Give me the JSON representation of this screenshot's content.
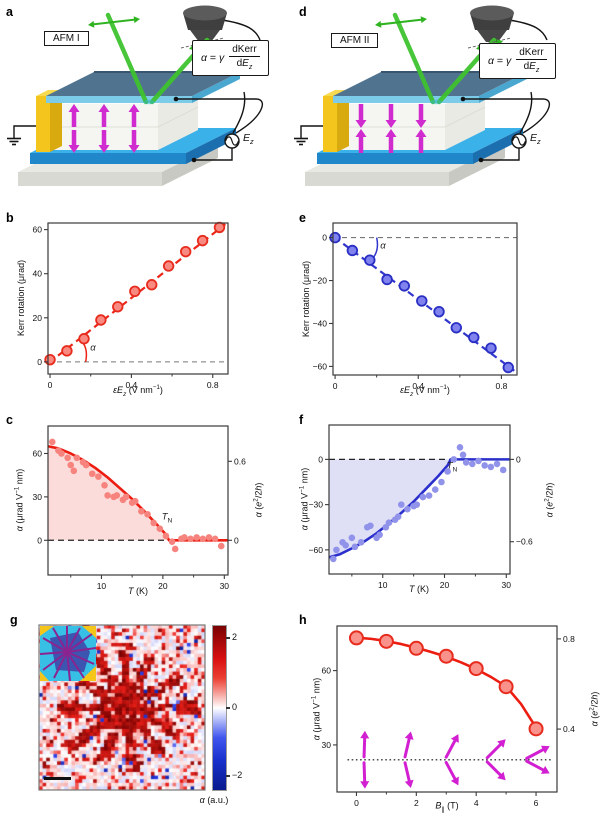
{
  "figure": {
    "letters": [
      "a",
      "b",
      "c",
      "d",
      "e",
      "f",
      "g",
      "h"
    ]
  },
  "panel_a": {
    "device_label": "AFM I",
    "equation": {
      "alpha": "α",
      "eq": " = ",
      "gamma": "γ",
      "num_d": "d",
      "num_name": "Kerr",
      "den_d": "d",
      "den_var": "E",
      "den_sub": "z"
    },
    "source": {
      "var": "E",
      "sub": "z"
    },
    "spins": {
      "top": "up",
      "bottom": "down"
    }
  },
  "panel_d": {
    "device_label": "AFM II",
    "equation": {
      "alpha": "α",
      "eq": " = ",
      "gamma": "γ",
      "num_d": "d",
      "num_name": "Kerr",
      "den_d": "d",
      "den_var": "E",
      "den_sub": "z"
    },
    "source": {
      "var": "E",
      "sub": "z"
    },
    "spins": {
      "top": "down",
      "bottom": "up"
    }
  },
  "chart_data": {
    "b": {
      "type": "scatter",
      "x": [
        0,
        0.083,
        0.167,
        0.25,
        0.333,
        0.417,
        0.5,
        0.583,
        0.667,
        0.75,
        0.833
      ],
      "y": [
        1,
        5,
        10.5,
        19,
        25,
        32,
        35,
        43.5,
        50,
        55,
        61
      ],
      "fit": {
        "type": "linear-dashed",
        "x": [
          -0.005,
          0.862
        ],
        "y": [
          -0.4,
          62.5
        ]
      },
      "arc": {
        "from": [
          0.175,
          0
        ],
        "ctrl": [
          0.19,
          6.5
        ],
        "to": [
          0.148,
          10.3
        ]
      },
      "xlim": [
        -0.01,
        0.875
      ],
      "ylim": [
        -5.5,
        63
      ],
      "xticks": {
        "values": [
          0,
          0.4,
          0.8
        ],
        "labels": [
          "0",
          "0.4",
          "0.8"
        ],
        "minor": [
          0.2,
          0.6
        ]
      },
      "yticks": {
        "values": [
          0,
          20,
          40,
          60
        ],
        "labels": [
          "0",
          "20",
          "40",
          "60"
        ]
      },
      "xlabel": [
        {
          "t": "ε",
          "i": true
        },
        {
          "t": "E",
          "i": true
        },
        {
          "t": "z",
          "i": true,
          "sub": true
        },
        {
          "t": " (V nm"
        },
        {
          "t": "−1",
          "sup": true
        },
        {
          "t": ")"
        }
      ],
      "ylabel": [
        {
          "t": "Kerr rotation (μrad)"
        }
      ],
      "annotation": [
        {
          "t": "α",
          "i": true
        }
      ],
      "zero_line": 0,
      "colors": {
        "line": "#ec2518",
        "marker_fill": "#f98a82",
        "marker_edge": "#e72c1e"
      }
    },
    "e": {
      "type": "scatter",
      "x": [
        0,
        0.083,
        0.167,
        0.25,
        0.333,
        0.417,
        0.5,
        0.583,
        0.667,
        0.75,
        0.833
      ],
      "y": [
        0,
        -6,
        -10.5,
        -19.5,
        -22.5,
        -29.5,
        -34.5,
        -42,
        -46.5,
        -51.5,
        -60.5
      ],
      "fit": {
        "type": "linear-dashed",
        "x": [
          -0.005,
          0.862
        ],
        "y": [
          0.3,
          -62
        ]
      },
      "arc": {
        "from": [
          0.2,
          0
        ],
        "ctrl": [
          0.215,
          -6.5
        ],
        "to": [
          0.172,
          -10.8
        ]
      },
      "xlim": [
        -0.01,
        0.875
      ],
      "ylim": [
        -64,
        6.8
      ],
      "xticks": {
        "values": [
          0,
          0.4,
          0.8
        ],
        "labels": [
          "0",
          "0.4",
          "0.8"
        ],
        "minor": [
          0.2,
          0.6
        ]
      },
      "yticks": {
        "values": [
          0,
          -20,
          -40,
          -60
        ],
        "labels": [
          "0",
          "−20",
          "−40",
          "−60"
        ]
      },
      "xlabel": [
        {
          "t": "ε",
          "i": true
        },
        {
          "t": "E",
          "i": true
        },
        {
          "t": "z",
          "i": true,
          "sub": true
        },
        {
          "t": " (V nm"
        },
        {
          "t": "−1",
          "sup": true
        },
        {
          "t": ")"
        }
      ],
      "ylabel": [
        {
          "t": "Kerr rotation (μrad)"
        }
      ],
      "annotation": [
        {
          "t": "α",
          "i": true
        }
      ],
      "zero_line": 0,
      "colors": {
        "line": "#3136cc",
        "marker_fill": "#8083ee",
        "marker_edge": "#2a2fc4"
      }
    },
    "c": {
      "type": "scatter+curve",
      "scatter_T": [
        2,
        3,
        3.5,
        4.5,
        5,
        5.5,
        6,
        7,
        7.5,
        8.5,
        9.5,
        10.5,
        11,
        12,
        12.5,
        13.5,
        14,
        15,
        15.5,
        16.5,
        17.5,
        18.5,
        19.5,
        20.5,
        21.5,
        22,
        23,
        23.5,
        24.5,
        25.5,
        26.5,
        27.5,
        28.5,
        29.5
      ],
      "scatter_alpha": [
        68,
        62,
        60,
        57,
        52,
        48,
        57,
        54,
        52,
        46,
        44,
        38,
        31,
        30,
        31,
        28,
        30,
        26,
        27,
        20,
        18,
        12,
        8,
        3,
        -1,
        -6,
        1,
        2,
        1,
        2,
        1,
        2,
        1,
        -4
      ],
      "curve_T": [
        1.3,
        3,
        5,
        7,
        9,
        11,
        13,
        15,
        17,
        19,
        20.5,
        21,
        30.6
      ],
      "curve_alpha": [
        65,
        63.5,
        60,
        55.5,
        50,
        43.5,
        36,
        28.5,
        20,
        11,
        4,
        0,
        0
      ],
      "T_N": 21,
      "xlim": [
        1.3,
        30.6
      ],
      "ylim": [
        -24,
        79
      ],
      "xticks": {
        "values": [
          10,
          20,
          30
        ],
        "labels": [
          "10",
          "20",
          "30"
        ],
        "minor": [
          5,
          15,
          25
        ]
      },
      "yticks_left": {
        "values": [
          0,
          30,
          60
        ],
        "labels": [
          "0",
          "30",
          "60"
        ]
      },
      "yticks_right": {
        "values": [
          0,
          54.6
        ],
        "labels": [
          "0",
          "0.6"
        ]
      },
      "xlabel": [
        {
          "t": "T",
          "i": true
        },
        {
          "t": " (K)"
        }
      ],
      "ylabel_left": [
        {
          "t": "α",
          "i": true
        },
        {
          "t": " (μrad V"
        },
        {
          "t": "−1",
          "sup": true
        },
        {
          "t": " nm)"
        }
      ],
      "ylabel_right": [
        {
          "t": "α",
          "i": true
        },
        {
          "t": " ("
        },
        {
          "t": "e",
          "i": true
        },
        {
          "t": "2",
          "sup": true
        },
        {
          "t": "/2"
        },
        {
          "t": "h",
          "i": true
        },
        {
          "t": ")"
        }
      ],
      "tn_label": [
        {
          "t": "T",
          "i": true
        },
        {
          "t": "N",
          "sub": true
        }
      ],
      "zero_line": 0,
      "colors": {
        "line": "#ec1c10",
        "scatter": "#f6837d",
        "fill": "#fcdcda"
      }
    },
    "f": {
      "type": "scatter+curve",
      "scatter_T": [
        2,
        2.5,
        3.5,
        4,
        5,
        5.5,
        6.5,
        7.5,
        8,
        9,
        9.5,
        10.5,
        11,
        12,
        12.5,
        13,
        14,
        15,
        15.5,
        16.5,
        17.5,
        18.5,
        19.5,
        20.5,
        21.5,
        22.5,
        23,
        23.5,
        24.5,
        25.5,
        26.5,
        27.5,
        28.5,
        29.5
      ],
      "scatter_alpha": [
        -66,
        -60,
        -55,
        -57,
        -52,
        -58,
        -55,
        -45,
        -44,
        -52,
        -50,
        -45,
        -42,
        -40,
        -38,
        -30,
        -33,
        -31,
        -30,
        -25,
        -24,
        -20,
        -15,
        -8,
        0,
        8,
        3,
        -2,
        -3,
        -1,
        -4,
        -5,
        -3,
        -7
      ],
      "curve_T": [
        1.3,
        3,
        5,
        7,
        9,
        11,
        13,
        15,
        17,
        19,
        20.5,
        21,
        30.6
      ],
      "curve_alpha": [
        -65,
        -63,
        -59,
        -54.5,
        -49,
        -42.5,
        -35.5,
        -28,
        -19.5,
        -11,
        -4,
        0,
        0
      ],
      "T_N": 21,
      "xlim": [
        1.3,
        30.6
      ],
      "ylim": [
        -76,
        22.8
      ],
      "xticks": {
        "values": [
          10,
          20,
          30
        ],
        "labels": [
          "10",
          "20",
          "30"
        ],
        "minor": [
          5,
          15,
          25
        ]
      },
      "yticks_left": {
        "values": [
          0,
          -30,
          -60
        ],
        "labels": [
          "0",
          "−30",
          "−60"
        ]
      },
      "yticks_right": {
        "values": [
          0,
          -54.6
        ],
        "labels": [
          "0",
          "−0.6"
        ]
      },
      "xlabel": [
        {
          "t": "T",
          "i": true
        },
        {
          "t": " (K)"
        }
      ],
      "ylabel_left": [
        {
          "t": "α",
          "i": true
        },
        {
          "t": " (μrad V"
        },
        {
          "t": "−1",
          "sup": true
        },
        {
          "t": " nm)"
        }
      ],
      "ylabel_right": [
        {
          "t": "α",
          "i": true
        },
        {
          "t": " ("
        },
        {
          "t": "e",
          "i": true
        },
        {
          "t": "2",
          "sup": true
        },
        {
          "t": "/2"
        },
        {
          "t": "h",
          "i": true
        },
        {
          "t": ")"
        }
      ],
      "tn_label": [
        {
          "t": "T",
          "i": true
        },
        {
          "t": "N",
          "sub": true
        }
      ],
      "zero_line": 0,
      "colors": {
        "line": "#2b30cc",
        "scatter": "#9193ea",
        "fill": "#dfe0f5"
      }
    },
    "g": {
      "type": "heatmap",
      "label": [
        {
          "t": "α",
          "i": true
        },
        {
          "t": " (a.u.)"
        }
      ],
      "colorbar": {
        "ticks": [
          "2",
          "0",
          "−2"
        ],
        "vmax": 2,
        "vmin": -2
      },
      "shape": {
        "center": [
          0.53,
          0.5
        ],
        "body_radius": 0.16,
        "arm_angles_deg": [
          0,
          28,
          55,
          85,
          115,
          145,
          180,
          210,
          240,
          268,
          295,
          330
        ],
        "arm_lengths": [
          0.42,
          0.36,
          0.34,
          0.4,
          0.36,
          0.44,
          0.42,
          0.34,
          0.38,
          0.4,
          0.34,
          0.38
        ]
      },
      "grid": [
        46,
        46
      ],
      "seed": 20,
      "inset": "optical image of flake with radial electrodes",
      "scalebar": true
    },
    "h": {
      "type": "scatter+curve",
      "B": [
        0,
        1,
        2,
        3,
        4,
        5,
        6
      ],
      "alpha": [
        73.2,
        71.8,
        69,
        65.8,
        60.8,
        53.5,
        36.5
      ],
      "curve_B": [
        0,
        0.5,
        1,
        1.5,
        2,
        2.5,
        3,
        3.5,
        4,
        4.5,
        5,
        5.5,
        6
      ],
      "curve_alpha": [
        73.3,
        72.8,
        71.9,
        70.7,
        69.2,
        67.5,
        65.6,
        63.3,
        60.6,
        57.4,
        53.6,
        46.5,
        37
      ],
      "xlim": [
        -0.65,
        6.7
      ],
      "ylim": [
        11,
        78
      ],
      "xticks": {
        "values": [
          0,
          2,
          4,
          6
        ],
        "labels": [
          "0",
          "2",
          "4",
          "6"
        ],
        "minor": [
          1,
          3,
          5
        ]
      },
      "yticks_left": {
        "values": [
          30,
          60
        ],
        "labels": [
          "30",
          "60"
        ]
      },
      "yticks_right": {
        "values": [
          36.4,
          72.8
        ],
        "labels": [
          "0.4",
          "0.8"
        ]
      },
      "xlabel": [
        {
          "t": "B",
          "i": true
        },
        {
          "t": "∥",
          "sub": true
        },
        {
          "t": " (T)"
        }
      ],
      "ylabel_left": [
        {
          "t": "α",
          "i": true
        },
        {
          "t": " (μrad V"
        },
        {
          "t": "−1",
          "sup": true
        },
        {
          "t": " nm)"
        }
      ],
      "ylabel_right": [
        {
          "t": "α",
          "i": true
        },
        {
          "t": " ("
        },
        {
          "t": "e",
          "i": true
        },
        {
          "t": "2",
          "sup": true
        },
        {
          "t": "/2"
        },
        {
          "t": "h",
          "i": true
        },
        {
          "t": ")"
        }
      ],
      "spin_cant": {
        "dotted_y": 24,
        "pairs": [
          {
            "B": 0.25,
            "deg": 2
          },
          {
            "B": 1.6,
            "deg": 13
          },
          {
            "B": 2.95,
            "deg": 28
          },
          {
            "B": 4.3,
            "deg": 45
          },
          {
            "B": 5.6,
            "deg": 62
          }
        ]
      },
      "colors": {
        "line": "#ec1c10",
        "marker_fill": "#f9928b",
        "marker_edge": "#e72c1e",
        "arrow": "#d21fd2"
      }
    }
  }
}
